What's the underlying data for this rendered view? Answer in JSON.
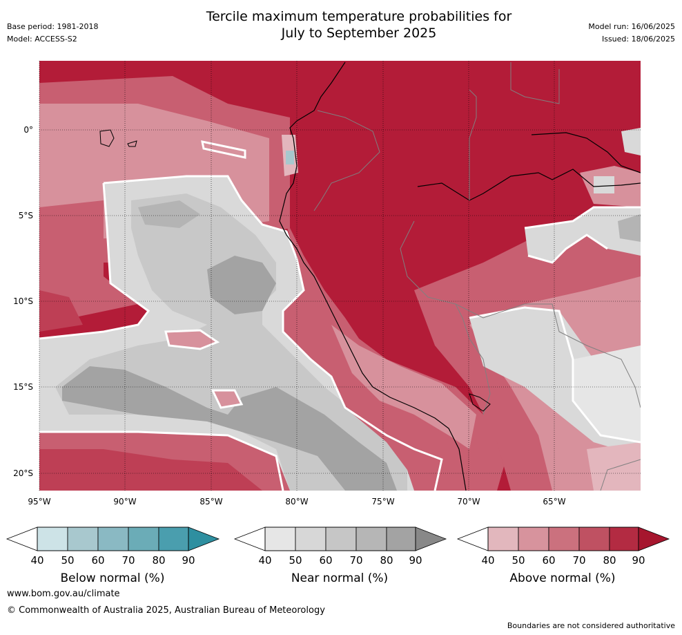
{
  "header": {
    "base_period": "Base period: 1981-2018",
    "model": "Model: ACCESS-S2",
    "title_line1": "Tercile maximum temperature probabilities for",
    "title_line2": "July to September 2025",
    "model_run": "Model run: 16/06/2025",
    "issued": "Issued: 18/06/2025"
  },
  "map": {
    "lat_labels": [
      "0°",
      "5°S",
      "10°S",
      "15°S",
      "20°S"
    ],
    "lon_labels": [
      "95°W",
      "90°W",
      "85°W",
      "80°W",
      "75°W",
      "70°W",
      "65°W"
    ],
    "colors": {
      "above_90": "#b31c38",
      "above_80": "#be3f55",
      "above_70": "#c85f71",
      "above_60": "#d7919c",
      "above_50": "#e3b6bd",
      "near_60": "#c8c8c8",
      "near_70": "#b4b4b4",
      "near_80": "#a3a3a3",
      "near_50": "#d9d9d9",
      "near_40": "#e6e6e6",
      "below_50": "#a7c8ce",
      "coast": "#000000",
      "border": "#808080",
      "contour": "#ffffff"
    }
  },
  "colorbars": [
    {
      "title": "Below normal (%)",
      "ticks": [
        "40",
        "50",
        "60",
        "70",
        "80",
        "90"
      ],
      "colors": [
        "#cde3e7",
        "#a8c8ce",
        "#8ab9c3",
        "#6bacb7",
        "#4a9eae",
        "#2e8fa0"
      ]
    },
    {
      "title": "Near normal (%)",
      "ticks": [
        "40",
        "50",
        "60",
        "70",
        "80",
        "90"
      ],
      "colors": [
        "#e6e6e6",
        "#d7d7d7",
        "#c6c6c6",
        "#b6b6b6",
        "#a3a3a3",
        "#888888"
      ]
    },
    {
      "title": "Above normal (%)",
      "ticks": [
        "40",
        "50",
        "60",
        "70",
        "80",
        "90"
      ],
      "colors": [
        "#e2b7bd",
        "#d7939d",
        "#cb717e",
        "#bf5162",
        "#b32b42",
        "#a6162e"
      ]
    }
  ],
  "footer": {
    "url": "www.bom.gov.au/climate",
    "copyright": "© Commonwealth of Australia 2025, Australian Bureau of Meteorology",
    "note": "Boundaries are not considered authoritative"
  }
}
